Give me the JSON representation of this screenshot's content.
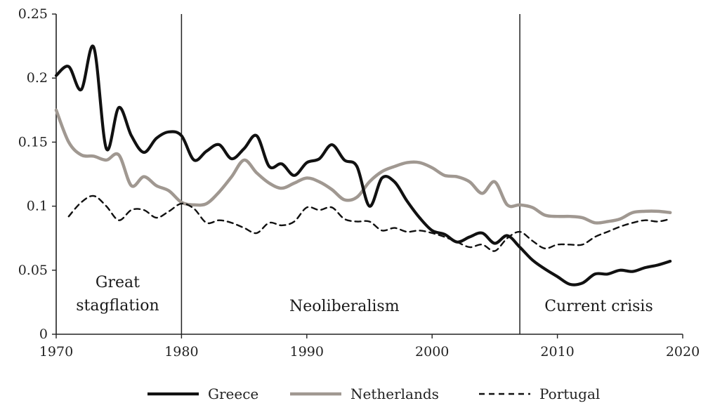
{
  "chart_data": {
    "type": "line",
    "title": "",
    "xlabel": "",
    "ylabel": "",
    "xlim": [
      1970,
      2020
    ],
    "ylim": [
      0,
      0.25
    ],
    "x_ticks": [
      1970,
      1980,
      1990,
      2000,
      2010,
      2020
    ],
    "x_tick_labels": [
      "1970",
      "1980",
      "1990",
      "2000",
      "2010",
      "2020"
    ],
    "y_ticks": [
      0,
      0.05,
      0.1,
      0.15,
      0.2,
      0.25
    ],
    "y_tick_labels": [
      "0",
      "0.05",
      "0.1",
      "0.15",
      "0.2",
      "0.25"
    ],
    "grid": false,
    "legend_position": "bottom",
    "period_dividers": [
      1980,
      2007
    ],
    "period_labels": [
      {
        "lines": [
          "Great",
          "stagflation"
        ],
        "x": 1974.9
      },
      {
        "lines": [
          "Neoliberalism"
        ],
        "x": 1993.0
      },
      {
        "lines": [
          "Current crisis"
        ],
        "x": 2013.3
      }
    ],
    "series": [
      {
        "name": "Greece",
        "color": "#111111",
        "style": "solid",
        "x": [
          1970,
          1971,
          1972,
          1973,
          1974,
          1975,
          1976,
          1977,
          1978,
          1979,
          1980,
          1981,
          1982,
          1983,
          1984,
          1985,
          1986,
          1987,
          1988,
          1989,
          1990,
          1991,
          1992,
          1993,
          1994,
          1995,
          1996,
          1997,
          1998,
          1999,
          2000,
          2001,
          2002,
          2003,
          2004,
          2005,
          2006,
          2007,
          2008,
          2009,
          2010,
          2011,
          2012,
          2013,
          2014,
          2015,
          2016,
          2017,
          2018,
          2019
        ],
        "values": [
          0.202,
          0.209,
          0.191,
          0.224,
          0.145,
          0.177,
          0.155,
          0.142,
          0.153,
          0.158,
          0.155,
          0.136,
          0.143,
          0.148,
          0.137,
          0.145,
          0.155,
          0.131,
          0.133,
          0.124,
          0.134,
          0.137,
          0.148,
          0.136,
          0.131,
          0.1,
          0.122,
          0.119,
          0.104,
          0.091,
          0.081,
          0.078,
          0.072,
          0.076,
          0.079,
          0.071,
          0.077,
          0.068,
          0.058,
          0.051,
          0.045,
          0.039,
          0.04,
          0.047,
          0.047,
          0.05,
          0.049,
          0.052,
          0.054,
          0.057
        ]
      },
      {
        "name": "Netherlands",
        "color": "#a09891",
        "style": "solid",
        "x": [
          1970,
          1971,
          1972,
          1973,
          1974,
          1975,
          1976,
          1977,
          1978,
          1979,
          1980,
          1981,
          1982,
          1983,
          1984,
          1985,
          1986,
          1987,
          1988,
          1989,
          1990,
          1991,
          1992,
          1993,
          1994,
          1995,
          1996,
          1997,
          1998,
          1999,
          2000,
          2001,
          2002,
          2003,
          2004,
          2005,
          2006,
          2007,
          2008,
          2009,
          2010,
          2011,
          2012,
          2013,
          2014,
          2015,
          2016,
          2017,
          2018,
          2019
        ],
        "values": [
          0.175,
          0.15,
          0.14,
          0.139,
          0.136,
          0.14,
          0.116,
          0.123,
          0.116,
          0.112,
          0.103,
          0.101,
          0.102,
          0.111,
          0.123,
          0.136,
          0.126,
          0.118,
          0.114,
          0.118,
          0.122,
          0.119,
          0.113,
          0.105,
          0.107,
          0.119,
          0.127,
          0.131,
          0.134,
          0.134,
          0.13,
          0.124,
          0.123,
          0.119,
          0.11,
          0.119,
          0.101,
          0.101,
          0.099,
          0.093,
          0.092,
          0.092,
          0.091,
          0.087,
          0.088,
          0.09,
          0.095,
          0.096,
          0.096,
          0.095
        ]
      },
      {
        "name": "Portugal",
        "color": "#111111",
        "style": "dashed",
        "x": [
          1971,
          1972,
          1973,
          1974,
          1975,
          1976,
          1977,
          1978,
          1979,
          1980,
          1981,
          1982,
          1983,
          1984,
          1985,
          1986,
          1987,
          1988,
          1989,
          1990,
          1991,
          1992,
          1993,
          1994,
          1995,
          1996,
          1997,
          1998,
          1999,
          2000,
          2001,
          2002,
          2003,
          2004,
          2005,
          2006,
          2007,
          2008,
          2009,
          2010,
          2011,
          2012,
          2013,
          2014,
          2015,
          2016,
          2017,
          2018,
          2019
        ],
        "values": [
          0.092,
          0.103,
          0.108,
          0.1,
          0.089,
          0.097,
          0.097,
          0.091,
          0.096,
          0.102,
          0.098,
          0.087,
          0.089,
          0.087,
          0.083,
          0.079,
          0.087,
          0.085,
          0.088,
          0.099,
          0.097,
          0.099,
          0.09,
          0.088,
          0.088,
          0.081,
          0.083,
          0.08,
          0.081,
          0.079,
          0.076,
          0.072,
          0.068,
          0.07,
          0.065,
          0.075,
          0.08,
          0.073,
          0.067,
          0.07,
          0.07,
          0.07,
          0.076,
          0.08,
          0.084,
          0.087,
          0.089,
          0.088,
          0.09
        ]
      }
    ]
  }
}
